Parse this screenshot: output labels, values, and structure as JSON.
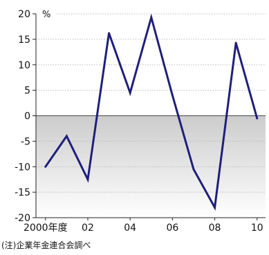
{
  "chart_data": {
    "type": "line",
    "title": "",
    "xlabel": "",
    "ylabel": "",
    "unit": "%",
    "x": [
      2000,
      2001,
      2002,
      2003,
      2004,
      2005,
      2006,
      2007,
      2008,
      2009,
      2010
    ],
    "x_tick_values": [
      2000,
      2002,
      2004,
      2006,
      2008,
      2010
    ],
    "x_tick_labels": [
      "2000年度",
      "02",
      "04",
      "06",
      "08",
      "10"
    ],
    "y_ticks": [
      20,
      15,
      10,
      5,
      0,
      -5,
      -10,
      -15,
      -20
    ],
    "y_tick_labels": [
      "20",
      "15",
      "10",
      "5",
      "0",
      "-5",
      "-10",
      "-15",
      "-20"
    ],
    "xlim": [
      1999.55,
      2010.4
    ],
    "ylim": [
      -20,
      20
    ],
    "series": [
      {
        "values": [
          -10,
          -4,
          -12.5,
          16.2,
          4.5,
          19.3,
          4,
          -10.5,
          -18,
          14.3,
          -0.5
        ]
      }
    ],
    "negative_region_shaded": true,
    "grid": "horizontal-dotted",
    "colors": {
      "line": "#1f1f7a",
      "axis": "#222222",
      "grid": "#bbbbbb",
      "zero_line": "#444444",
      "shade_top": "#cccccc",
      "shade_bottom": "#ffffff"
    }
  },
  "note": "(注)企業年金連合会調べ"
}
